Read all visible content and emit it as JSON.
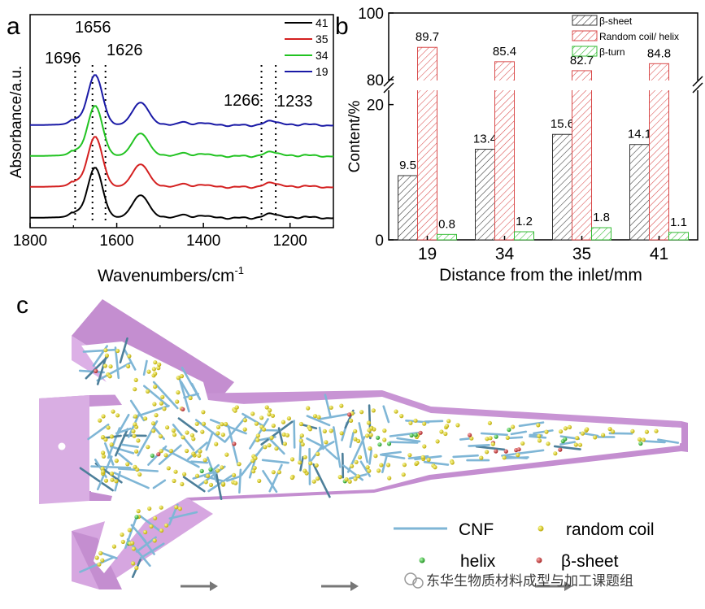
{
  "panel_a": {
    "label": "a",
    "ylabel": "Absorbance/a.u.",
    "xlabel_main": "Wavenumbers/cm",
    "xlabel_sup": "-1",
    "peak_labels": [
      "1696",
      "1656",
      "1626",
      "1266",
      "1233"
    ]
  },
  "panel_b": {
    "label": "b",
    "ylabel": "Content/%",
    "xlabel": "Distance from the inlet/mm"
  },
  "panel_c": {
    "label": "c",
    "legend": {
      "cnf": "CNF",
      "random_coil": "random coil",
      "helix": "helix",
      "beta_sheet": "β-sheet"
    },
    "colors": {
      "cnf": "#7fb6d6",
      "random_coil": "#f1e23a",
      "helix": "#3fc43f",
      "beta_sheet": "#d83a3a",
      "channel": "#d6a6e0"
    }
  },
  "watermark": "东华生物质材料成型与加工课题组",
  "chart_data": [
    {
      "type": "line",
      "panel": "a",
      "title": "",
      "xlabel": "Wavenumbers/cm-1",
      "ylabel": "Absorbance/a.u.",
      "xlim": [
        1800,
        1100
      ],
      "x_ticks": [
        1800,
        1600,
        1400,
        1200
      ],
      "legend_placement": "top-right",
      "reference_lines": [
        1696,
        1656,
        1626,
        1266,
        1233
      ],
      "series": [
        {
          "name": "41",
          "color": "#000000",
          "offset": 0
        },
        {
          "name": "35",
          "color": "#d42020",
          "offset": 1
        },
        {
          "name": "34",
          "color": "#22c322",
          "offset": 2
        },
        {
          "name": "19",
          "color": "#1a1aa6",
          "offset": 3
        }
      ]
    },
    {
      "type": "bar",
      "panel": "b",
      "title": "",
      "xlabel": "Distance from the inlet/mm",
      "ylabel": "Content/%",
      "categories": [
        "19",
        "34",
        "35",
        "41"
      ],
      "broken_axis": true,
      "ylim_lower": [
        0,
        22
      ],
      "ylim_upper": [
        80,
        100
      ],
      "y_ticks": [
        0,
        20,
        80,
        100
      ],
      "legend_placement": "top-right",
      "series": [
        {
          "name": "β-sheet",
          "values": [
            9.5,
            13.4,
            15.6,
            14.1
          ],
          "color": "#333333",
          "labels": [
            "9.5",
            "13.4",
            "15.6",
            "14.1"
          ]
        },
        {
          "name": "Random coil/ helix",
          "values": [
            89.7,
            85.4,
            82.7,
            84.8
          ],
          "color": "#d94a4a",
          "labels": [
            "89.7",
            "85.4",
            "82.7",
            "84.8"
          ]
        },
        {
          "name": "β-turn",
          "values": [
            0.8,
            1.2,
            1.8,
            1.1
          ],
          "color": "#33bb33",
          "labels": [
            "0.8",
            "1.2",
            "1.8",
            "1.1"
          ]
        }
      ]
    }
  ]
}
